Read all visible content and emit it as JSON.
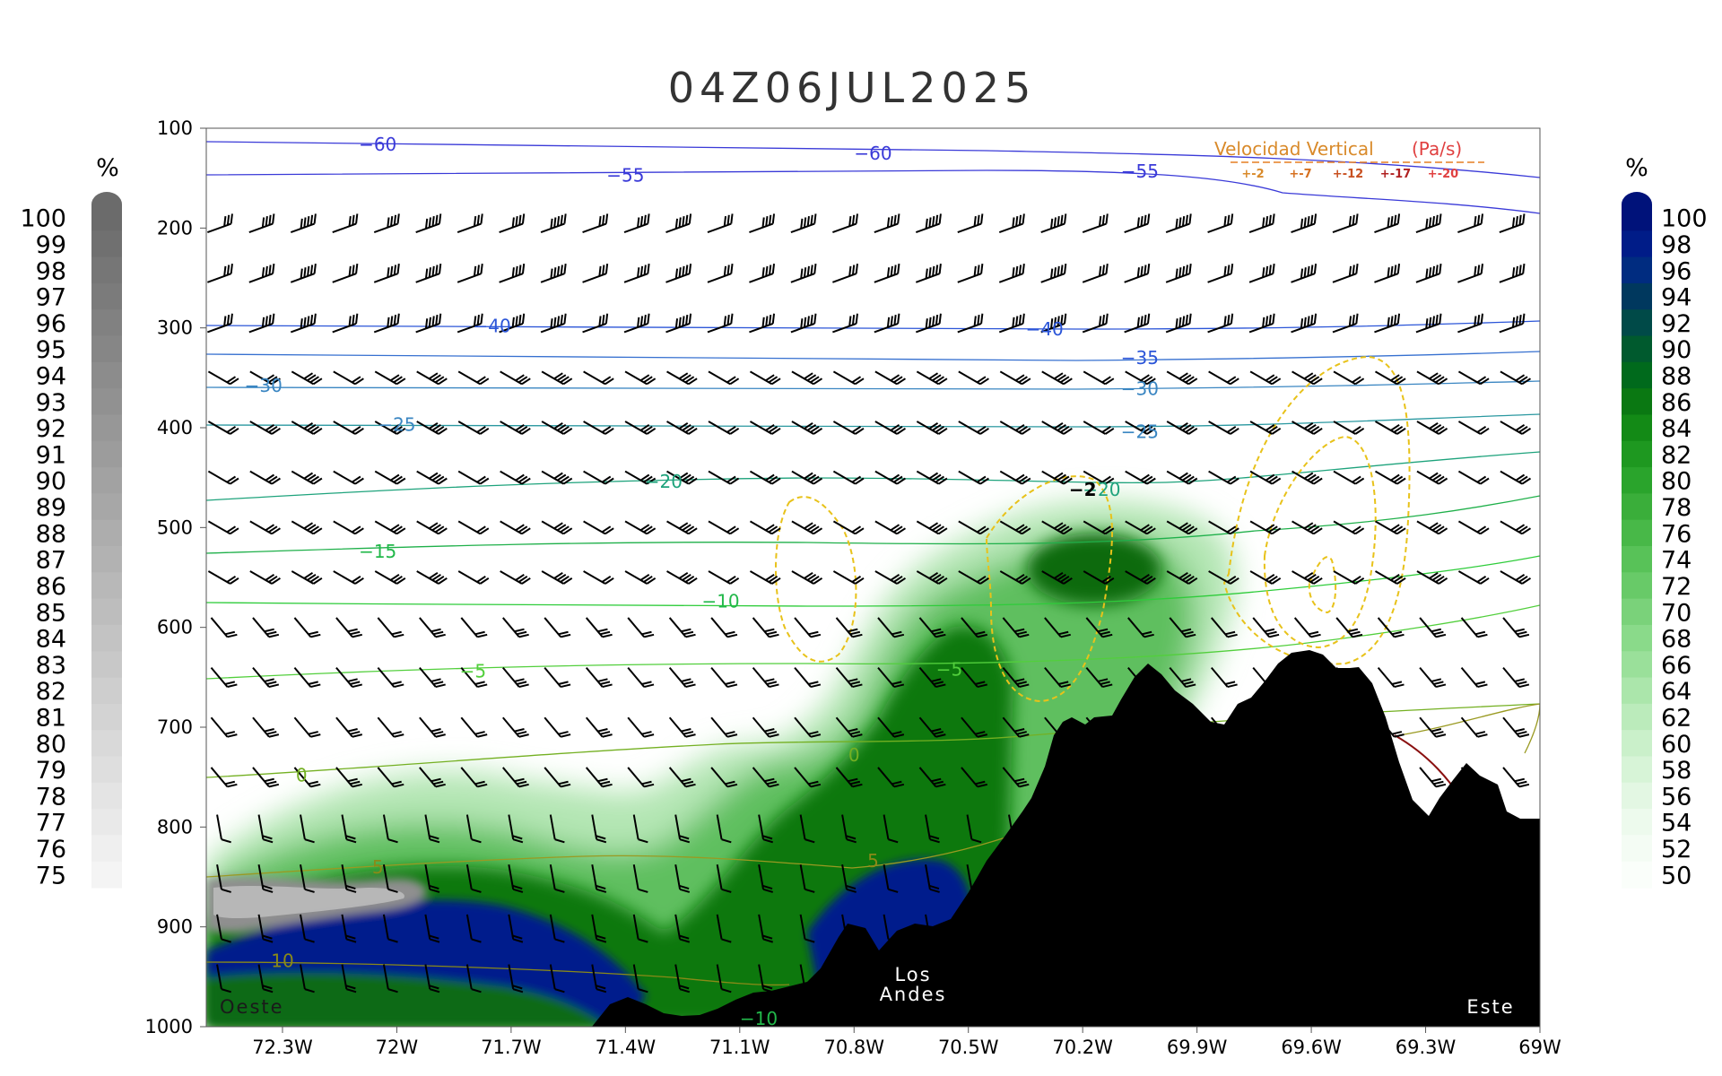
{
  "chart_data": {
    "type": "heatmap",
    "title": "04Z06JUL2025",
    "x_ticks": [
      "72.3W",
      "72W",
      "71.7W",
      "71.4W",
      "71.1W",
      "70.8W",
      "70.5W",
      "70.2W",
      "69.9W",
      "69.6W",
      "69.3W",
      "69W"
    ],
    "x_tick_values": [
      -72.3,
      -72.0,
      -71.7,
      -71.4,
      -71.1,
      -70.8,
      -70.5,
      -70.2,
      -69.9,
      -69.6,
      -69.3,
      -69.0
    ],
    "xlim": [
      -72.5,
      -69.0
    ],
    "y_ticks": [
      100,
      200,
      300,
      400,
      500,
      600,
      700,
      800,
      900,
      1000
    ],
    "ylim": [
      100,
      1000
    ],
    "y_reversed": true,
    "left_colorbar": {
      "unit": "%",
      "labels": [
        "100",
        "99",
        "98",
        "97",
        "96",
        "95",
        "94",
        "93",
        "92",
        "91",
        "90",
        "89",
        "88",
        "87",
        "86",
        "85",
        "84",
        "83",
        "82",
        "81",
        "80",
        "79",
        "78",
        "77",
        "76",
        "75"
      ],
      "color_top": "#6b6b6b",
      "color_bottom": "#f4f4f4"
    },
    "right_colorbar": {
      "unit": "%",
      "labels": [
        "100",
        "98",
        "96",
        "94",
        "92",
        "90",
        "88",
        "86",
        "84",
        "82",
        "80",
        "78",
        "76",
        "74",
        "72",
        "70",
        "68",
        "66",
        "64",
        "62",
        "60",
        "58",
        "56",
        "54",
        "52",
        "50"
      ],
      "colors": [
        "#00127a",
        "#001c88",
        "#002c80",
        "#00385e",
        "#004a48",
        "#005a2e",
        "#006a1c",
        "#0a7812",
        "#138a16",
        "#1e9820",
        "#2aa42c",
        "#3aae3a",
        "#48b848",
        "#58c258",
        "#68ca68",
        "#7ad27a",
        "#8ada8a",
        "#9ae09a",
        "#abe6ab",
        "#bbebbb",
        "#caf0ca",
        "#d7f4d7",
        "#e3f7e3",
        "#edfaed",
        "#f4fcf4",
        "#fafefa"
      ]
    },
    "legend": {
      "title": "Velocidad Vertical",
      "unit": "(Pa/s)",
      "items": [
        "+-2",
        "+-7",
        "+-12",
        "+-17",
        "+-20"
      ],
      "placement": "top-right"
    },
    "contour_labels": [
      {
        "text": "−60",
        "lon": -72.05,
        "p": 116
      },
      {
        "text": "−60",
        "lon": -70.75,
        "p": 125
      },
      {
        "text": "−55",
        "lon": -71.4,
        "p": 147
      },
      {
        "text": "−55",
        "lon": -70.05,
        "p": 143
      },
      {
        "text": "−40",
        "lon": -71.75,
        "p": 298
      },
      {
        "text": "−40",
        "lon": -70.3,
        "p": 301
      },
      {
        "text": "−35",
        "lon": -70.05,
        "p": 330
      },
      {
        "text": "−30",
        "lon": -72.35,
        "p": 358
      },
      {
        "text": "−30",
        "lon": -70.05,
        "p": 361
      },
      {
        "text": "−25",
        "lon": -72.0,
        "p": 397
      },
      {
        "text": "−25",
        "lon": -70.05,
        "p": 404
      },
      {
        "text": "−20",
        "lon": -71.3,
        "p": 454
      },
      {
        "text": "−20",
        "lon": -70.15,
        "p": 462
      },
      {
        "text": "−15",
        "lon": -72.05,
        "p": 524
      },
      {
        "text": "−10",
        "lon": -71.15,
        "p": 574
      },
      {
        "text": "−5",
        "lon": -71.8,
        "p": 644
      },
      {
        "text": "−5",
        "lon": -70.55,
        "p": 642
      },
      {
        "text": "0",
        "lon": -72.25,
        "p": 748
      },
      {
        "text": "0",
        "lon": -70.8,
        "p": 728
      },
      {
        "text": "5",
        "lon": -72.05,
        "p": 840
      },
      {
        "text": "5",
        "lon": -70.75,
        "p": 834
      },
      {
        "text": "10",
        "lon": -72.3,
        "p": 934
      },
      {
        "text": "−10",
        "lon": -71.05,
        "p": 992
      },
      {
        "text": "−2",
        "lon": -70.2,
        "p": 462
      }
    ],
    "annotations": {
      "left": "Oeste",
      "center_line1": "Los",
      "center_line2": "Andes",
      "right": "Este"
    },
    "terrain_color": "#000000",
    "grid": false
  }
}
